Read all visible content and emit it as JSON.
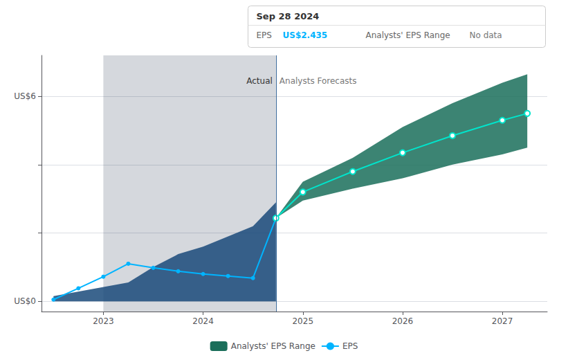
{
  "chart_data": {
    "type": "line",
    "xlim": [
      2022.38,
      2027.45
    ],
    "xticks": [
      2023,
      2024,
      2025,
      2026,
      2027
    ],
    "ylim": [
      -0.3,
      7.2
    ],
    "yticks": [
      {
        "value": 0,
        "label": "US$0"
      },
      {
        "value": 2,
        "label": null
      },
      {
        "value": 4,
        "label": null
      },
      {
        "value": 6,
        "label": "US$6"
      }
    ],
    "grid": true,
    "legend": "bottom",
    "series": [
      {
        "type": "band",
        "color": "#1a4a7a",
        "x": [
          2022.5,
          2023.25,
          2023.5,
          2023.75,
          2024.0,
          2024.25,
          2024.5,
          2024.73
        ],
        "lower": [
          0.0,
          0.0,
          0.0,
          0.0,
          0.0,
          0.0,
          0.0,
          0.0
        ],
        "upper": [
          0.15,
          0.55,
          1.0,
          1.38,
          1.6,
          1.9,
          2.2,
          2.9
        ]
      },
      {
        "name": "Analysts' EPS Range",
        "type": "band",
        "color": "#1a6e5a",
        "x": [
          2024.73,
          2025.0,
          2025.5,
          2026.0,
          2026.5,
          2027.0,
          2027.25
        ],
        "lower": [
          2.435,
          2.95,
          3.3,
          3.6,
          4.0,
          4.3,
          4.5
        ],
        "upper": [
          2.435,
          3.5,
          4.2,
          5.1,
          5.8,
          6.4,
          6.65
        ]
      },
      {
        "name": "EPS",
        "type": "line",
        "color": "#00b4ff",
        "marker": "circle",
        "x": [
          2022.5,
          2022.75,
          2023.0,
          2023.25,
          2023.5,
          2023.75,
          2024.0,
          2024.25,
          2024.5,
          2024.73
        ],
        "values": [
          0.05,
          0.38,
          0.72,
          1.1,
          0.98,
          0.88,
          0.8,
          0.74,
          0.68,
          2.435
        ]
      },
      {
        "type": "line",
        "color": "#00e5cc",
        "marker": "emptyCircle",
        "x": [
          2024.73,
          2025.0,
          2025.5,
          2026.0,
          2026.5,
          2027.0,
          2027.25
        ],
        "values": [
          2.435,
          3.2,
          3.8,
          4.35,
          4.85,
          5.3,
          5.5
        ]
      }
    ],
    "shaded_region": {
      "x": [
        2023.0,
        2024.73
      ],
      "color": "#142840"
    },
    "divider": 2024.73,
    "annotations": [
      {
        "text": "Actual",
        "x": 2024.73,
        "y": 6.45,
        "side": "left"
      },
      {
        "text": "Analysts Forecasts",
        "x": 2024.73,
        "y": 6.45,
        "side": "right"
      }
    ],
    "tooltip": {
      "title": "Sep 28 2024",
      "rows": [
        {
          "label": "EPS",
          "value": "US$2.435"
        },
        {
          "label": "Analysts' EPS Range",
          "value": "No data"
        }
      ]
    }
  }
}
